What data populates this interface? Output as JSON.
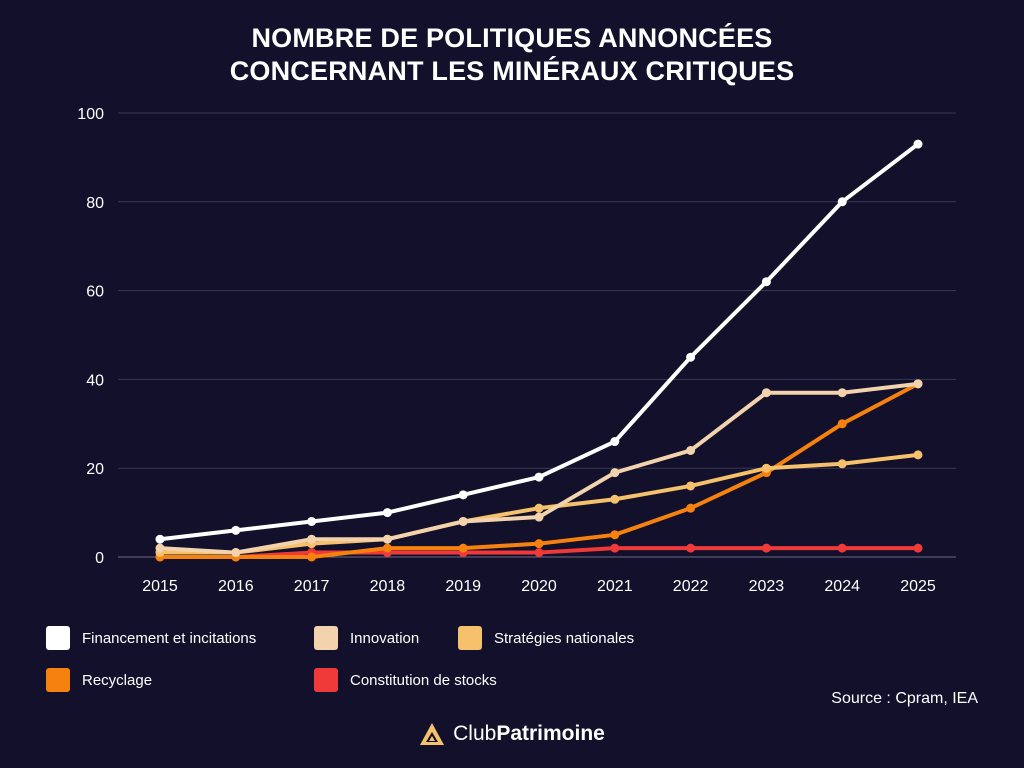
{
  "title_line1": "NOMBRE DE POLITIQUES ANNONCÉES",
  "title_line2": "CONCERNANT LES MINÉRAUX CRITIQUES",
  "source": "Source : Cpram, IEA",
  "brand": {
    "part1": "Club",
    "part2": "Patrimoine",
    "logo_color": "#f5c16c"
  },
  "chart_data": {
    "type": "line",
    "title": "NOMBRE DE POLITIQUES ANNONCÉES CONCERNANT LES MINÉRAUX CRITIQUES",
    "xlabel": "",
    "ylabel": "",
    "x": [
      "2015",
      "2016",
      "2017",
      "2018",
      "2019",
      "2020",
      "2021",
      "2022",
      "2023",
      "2024",
      "2025"
    ],
    "ylim": [
      0,
      100
    ],
    "yticks": [
      0,
      20,
      40,
      60,
      80,
      100
    ],
    "grid": true,
    "series": [
      {
        "name": "Financement et incitations",
        "color": "#ffffff",
        "values": [
          4,
          6,
          8,
          10,
          14,
          18,
          26,
          45,
          62,
          80,
          93
        ]
      },
      {
        "name": "Innovation",
        "color": "#f2d3ad",
        "values": [
          2,
          1,
          4,
          4,
          8,
          9,
          19,
          24,
          37,
          37,
          39
        ]
      },
      {
        "name": "Stratégies nationales",
        "color": "#f5c16c",
        "values": [
          1,
          1,
          3,
          4,
          8,
          11,
          13,
          16,
          20,
          21,
          23
        ]
      },
      {
        "name": "Recyclage",
        "color": "#f5820f",
        "values": [
          0,
          0,
          0,
          2,
          2,
          3,
          5,
          11,
          19,
          30,
          39
        ]
      },
      {
        "name": "Constitution de stocks",
        "color": "#f03a3a",
        "values": [
          0,
          0,
          1,
          1,
          1,
          1,
          2,
          2,
          2,
          2,
          2
        ]
      }
    ]
  }
}
